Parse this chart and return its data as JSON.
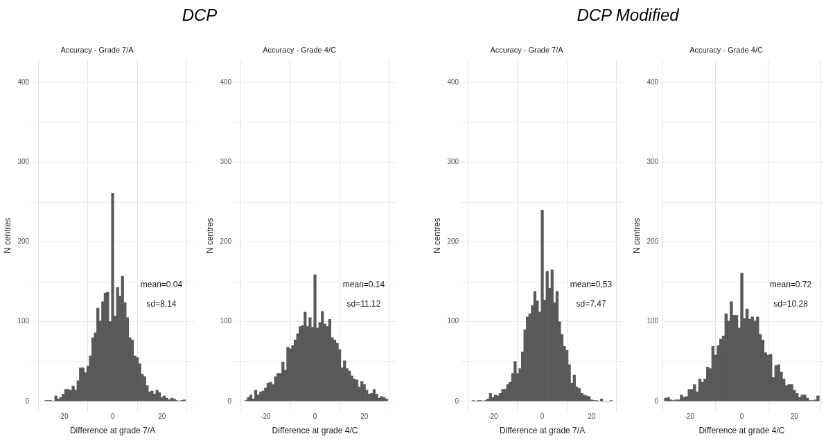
{
  "chart_data": [
    {
      "type": "histogram",
      "title": "DCP",
      "subtitle": "Accuracy - Grade 7/A",
      "xlabel": "Difference at grade 7/A",
      "ylabel": "N centres",
      "color": "#595959",
      "grid": true,
      "annotations": [
        "mean=0.04",
        "sd=8.14"
      ],
      "bins": [
        -27.5,
        -26.5,
        -25.5,
        -24.5,
        -23.5,
        -22.5,
        -21.5,
        -20.5,
        -19.5,
        -18.5,
        -17.5,
        -16.5,
        -15.5,
        -14.5,
        -13.5,
        -12.5,
        -11.5,
        -10.5,
        -9.5,
        -8.5,
        -7.5,
        -6.5,
        -5.5,
        -4.5,
        -3.5,
        -2.5,
        -1.5,
        -0.5,
        0.5,
        1.5,
        2.5,
        3.5,
        4.5,
        5.5,
        6.5,
        7.5,
        8.5,
        9.5,
        10.5,
        11.5,
        12.5,
        13.5,
        14.5,
        15.5,
        16.5,
        17.5,
        18.5,
        19.5,
        20.5,
        21.5,
        22.5,
        23.5,
        24.5,
        25.5,
        26.5,
        27.5,
        28.5,
        29.5
      ],
      "values": [
        1,
        1,
        1,
        0,
        7,
        3,
        5,
        9,
        15,
        15,
        14,
        19,
        14,
        26,
        42,
        42,
        36,
        44,
        57,
        80,
        86,
        117,
        101,
        125,
        136,
        137,
        100,
        261,
        107,
        143,
        132,
        157,
        124,
        105,
        80,
        77,
        57,
        55,
        47,
        34,
        31,
        20,
        12,
        13,
        9,
        14,
        11,
        5,
        7,
        4,
        2,
        4,
        3,
        1,
        0,
        1,
        2
      ],
      "xlim": [
        -33,
        33
      ],
      "ylim": [
        -12,
        428
      ],
      "xticks": [
        -20,
        0,
        20
      ],
      "yticks": [
        0,
        {
          "value": 50,
          "label": null
        },
        100,
        {
          "value": 150,
          "label": null
        },
        200,
        {
          "value": 250,
          "label": null
        },
        300,
        {
          "value": 350,
          "label": null
        },
        400
      ]
    },
    {
      "type": "histogram",
      "subtitle": "Accuracy - Grade 4/C",
      "xlabel": "Difference at grade 4/C",
      "ylabel": "N centres",
      "color": "#595959",
      "grid": true,
      "annotations": [
        "mean=0.14",
        "sd=11.12"
      ],
      "bins": [
        -28.5,
        -27.5,
        -26.5,
        -25.5,
        -24.5,
        -23.5,
        -22.5,
        -21.5,
        -20.5,
        -19.5,
        -18.5,
        -17.5,
        -16.5,
        -15.5,
        -14.5,
        -13.5,
        -12.5,
        -11.5,
        -10.5,
        -9.5,
        -8.5,
        -7.5,
        -6.5,
        -5.5,
        -4.5,
        -3.5,
        -2.5,
        -1.5,
        -0.5,
        0.5,
        1.5,
        2.5,
        3.5,
        4.5,
        5.5,
        6.5,
        7.5,
        8.5,
        9.5,
        10.5,
        11.5,
        12.5,
        13.5,
        14.5,
        15.5,
        16.5,
        17.5,
        18.5,
        19.5,
        20.5,
        21.5,
        22.5,
        23.5,
        24.5,
        25.5,
        26.5,
        27.5,
        28.5,
        29.5
      ],
      "values": [
        1,
        5,
        8,
        3,
        14,
        8,
        12,
        13,
        17,
        23,
        24,
        21,
        31,
        35,
        35,
        49,
        39,
        68,
        66,
        70,
        77,
        85,
        94,
        95,
        112,
        94,
        105,
        93,
        159,
        92,
        99,
        113,
        97,
        94,
        103,
        80,
        77,
        73,
        65,
        42,
        51,
        41,
        38,
        32,
        28,
        27,
        18,
        25,
        21,
        14,
        9,
        10,
        15,
        9,
        4,
        6,
        5,
        3
      ],
      "xlim": [
        -33,
        33
      ],
      "ylim": [
        -12,
        428
      ],
      "xticks": [
        -20,
        0,
        20
      ],
      "yticks": [
        0,
        {
          "value": 50,
          "label": null
        },
        100,
        {
          "value": 150,
          "label": null
        },
        200,
        {
          "value": 250,
          "label": null
        },
        300,
        {
          "value": 350,
          "label": null
        },
        400
      ]
    },
    {
      "type": "histogram",
      "title": "DCP Modified",
      "subtitle": "Accuracy - Grade 7/A",
      "xlabel": "Difference at grade 7/A",
      "ylabel": "N centres",
      "color": "#595959",
      "grid": true,
      "annotations": [
        "mean=0.53",
        "sd=7.47"
      ],
      "bins": [
        -28.5,
        -27.5,
        -26.5,
        -25.5,
        -24.5,
        -23.5,
        -22.5,
        -21.5,
        -20.5,
        -19.5,
        -18.5,
        -17.5,
        -16.5,
        -15.5,
        -14.5,
        -13.5,
        -12.5,
        -11.5,
        -10.5,
        -9.5,
        -8.5,
        -7.5,
        -6.5,
        -5.5,
        -4.5,
        -3.5,
        -2.5,
        -1.5,
        -0.5,
        0.5,
        1.5,
        2.5,
        3.5,
        4.5,
        5.5,
        6.5,
        7.5,
        8.5,
        9.5,
        10.5,
        11.5,
        12.5,
        13.5,
        14.5,
        15.5,
        16.5,
        17.5,
        18.5,
        19.5,
        20.5,
        21.5,
        22.5,
        23.5,
        24.5,
        25.5,
        26.5,
        27.5,
        28.5
      ],
      "values": [
        1,
        0,
        1,
        1,
        0,
        1,
        3,
        10,
        5,
        8,
        7,
        10,
        15,
        15,
        21,
        24,
        35,
        50,
        35,
        41,
        62,
        90,
        106,
        110,
        120,
        138,
        126,
        112,
        240,
        127,
        163,
        142,
        165,
        124,
        138,
        100,
        84,
        69,
        64,
        46,
        23,
        33,
        18,
        16,
        10,
        8,
        7,
        6,
        2,
        1,
        1,
        0,
        3,
        0,
        0,
        0,
        1
      ],
      "xlim": [
        -33,
        33
      ],
      "ylim": [
        -12,
        428
      ],
      "xticks": [
        -20,
        0,
        20
      ],
      "yticks": [
        0,
        {
          "value": 50,
          "label": null
        },
        100,
        {
          "value": 150,
          "label": null
        },
        200,
        {
          "value": 250,
          "label": null
        },
        300,
        {
          "value": 350,
          "label": null
        },
        400
      ]
    },
    {
      "type": "histogram",
      "subtitle": "Accuracy - Grade 4/C",
      "xlabel": "Difference at grade 4/C",
      "ylabel": "N centres",
      "color": "#595959",
      "grid": true,
      "annotations": [
        "mean=0.72",
        "sd=10.28"
      ],
      "bins": [
        -29.5,
        -28.5,
        -27.5,
        -26.5,
        -25.5,
        -24.5,
        -23.5,
        -22.5,
        -21.5,
        -20.5,
        -19.5,
        -18.5,
        -17.5,
        -16.5,
        -15.5,
        -14.5,
        -13.5,
        -12.5,
        -11.5,
        -10.5,
        -9.5,
        -8.5,
        -7.5,
        -6.5,
        -5.5,
        -4.5,
        -3.5,
        -2.5,
        -1.5,
        -0.5,
        0.5,
        1.5,
        2.5,
        3.5,
        4.5,
        5.5,
        6.5,
        7.5,
        8.5,
        9.5,
        10.5,
        11.5,
        12.5,
        13.5,
        14.5,
        15.5,
        16.5,
        17.5,
        18.5,
        19.5,
        20.5,
        21.5,
        22.5,
        23.5,
        24.5,
        25.5,
        26.5,
        27.5,
        28.5,
        29.5
      ],
      "values": [
        4,
        5,
        2,
        1,
        2,
        2,
        8,
        5,
        6,
        15,
        15,
        21,
        12,
        28,
        24,
        28,
        43,
        41,
        69,
        58,
        70,
        78,
        82,
        110,
        101,
        125,
        108,
        108,
        92,
        161,
        104,
        116,
        103,
        106,
        101,
        106,
        84,
        77,
        61,
        58,
        59,
        30,
        45,
        46,
        37,
        28,
        20,
        21,
        21,
        14,
        10,
        5,
        8,
        8,
        4,
        1,
        1,
        2,
        7
      ],
      "xlim": [
        -31,
        31
      ],
      "ylim": [
        -12,
        428
      ],
      "xticks": [
        -20,
        0,
        20
      ],
      "yticks": [
        0,
        {
          "value": 50,
          "label": null
        },
        100,
        {
          "value": 150,
          "label": null
        },
        200,
        {
          "value": 250,
          "label": null
        },
        300,
        {
          "value": 350,
          "label": null
        },
        400
      ]
    }
  ]
}
